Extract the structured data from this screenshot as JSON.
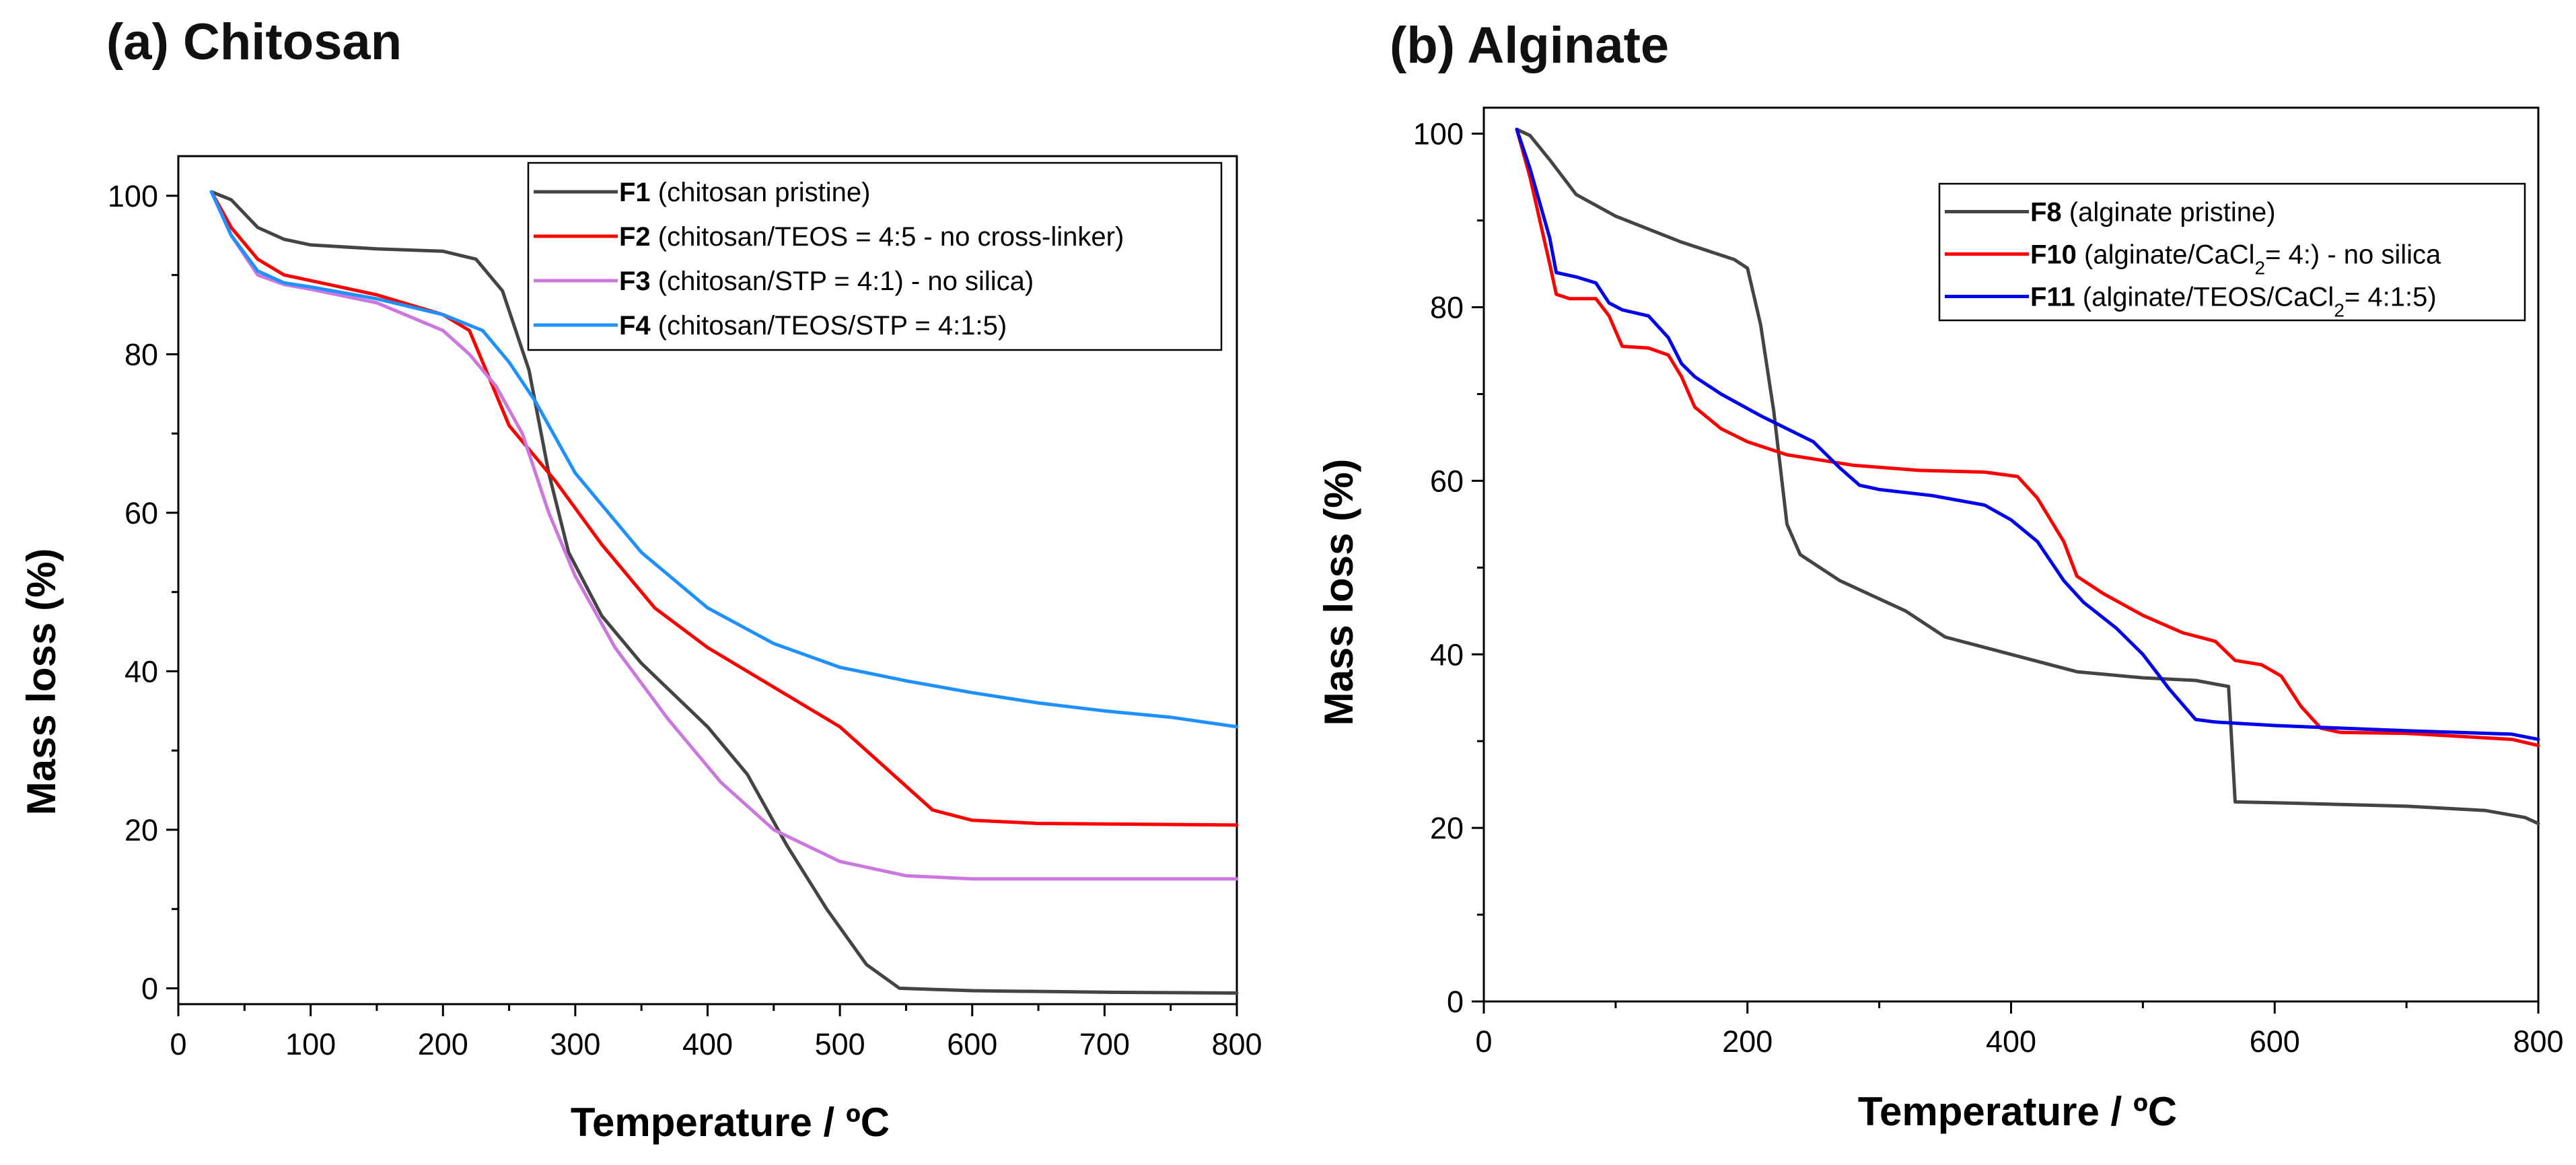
{
  "panels": [
    {
      "key": "a",
      "title": "(a) Chitosan",
      "chart_data": {
        "type": "line",
        "title": "(a) Chitosan",
        "xlabel": "Temperature  / ºC",
        "ylabel": "Mass loss (%)",
        "xlim": [
          0,
          800
        ],
        "ylim": [
          -2,
          105
        ],
        "xticks": [
          0,
          100,
          200,
          300,
          400,
          500,
          600,
          700,
          800
        ],
        "yticks": [
          0,
          20,
          40,
          60,
          80,
          100
        ],
        "legend_position": "top-right",
        "series": [
          {
            "name": "F1",
            "desc": " (chitosan pristine)",
            "color": "#444444",
            "points": [
              [
                25,
                100.5
              ],
              [
                40,
                99.5
              ],
              [
                60,
                96
              ],
              [
                80,
                94.5
              ],
              [
                100,
                93.8
              ],
              [
                150,
                93.3
              ],
              [
                200,
                93
              ],
              [
                225,
                92
              ],
              [
                245,
                88
              ],
              [
                265,
                78
              ],
              [
                280,
                65
              ],
              [
                295,
                55
              ],
              [
                320,
                47
              ],
              [
                350,
                41
              ],
              [
                400,
                33
              ],
              [
                430,
                27
              ],
              [
                460,
                18
              ],
              [
                490,
                10
              ],
              [
                520,
                3
              ],
              [
                545,
                0
              ],
              [
                600,
                -0.3
              ],
              [
                700,
                -0.5
              ],
              [
                800,
                -0.6
              ]
            ]
          },
          {
            "name": "F2",
            "desc": " (chitosan/TEOS = 4:5 - no cross-linker)",
            "color": "#ff0000",
            "points": [
              [
                25,
                100.5
              ],
              [
                40,
                96
              ],
              [
                60,
                92
              ],
              [
                80,
                90
              ],
              [
                100,
                89.3
              ],
              [
                150,
                87.5
              ],
              [
                200,
                85
              ],
              [
                220,
                83
              ],
              [
                235,
                77
              ],
              [
                250,
                71
              ],
              [
                265,
                68
              ],
              [
                285,
                64
              ],
              [
                320,
                56
              ],
              [
                360,
                48
              ],
              [
                400,
                43
              ],
              [
                450,
                38
              ],
              [
                500,
                33
              ],
              [
                540,
                27
              ],
              [
                570,
                22.5
              ],
              [
                600,
                21.2
              ],
              [
                650,
                20.8
              ],
              [
                800,
                20.6
              ]
            ]
          },
          {
            "name": "F3",
            "desc": " (chitosan/STP = 4:1) - no silica)",
            "color": "#cc77dd",
            "points": [
              [
                25,
                100.5
              ],
              [
                40,
                95
              ],
              [
                60,
                90
              ],
              [
                80,
                88.8
              ],
              [
                100,
                88.2
              ],
              [
                150,
                86.5
              ],
              [
                200,
                83
              ],
              [
                220,
                80
              ],
              [
                240,
                76
              ],
              [
                260,
                70
              ],
              [
                280,
                60
              ],
              [
                300,
                52
              ],
              [
                330,
                43
              ],
              [
                370,
                34
              ],
              [
                410,
                26
              ],
              [
                450,
                20
              ],
              [
                500,
                16
              ],
              [
                550,
                14.2
              ],
              [
                600,
                13.8
              ],
              [
                800,
                13.8
              ]
            ]
          },
          {
            "name": "F4",
            "desc": " (chitosan/TEOS/STP = 4:1:5)",
            "color": "#1e90ff",
            "points": [
              [
                25,
                100.5
              ],
              [
                40,
                95
              ],
              [
                60,
                90.5
              ],
              [
                80,
                89
              ],
              [
                100,
                88.5
              ],
              [
                150,
                87
              ],
              [
                200,
                85
              ],
              [
                230,
                83
              ],
              [
                250,
                79
              ],
              [
                270,
                74
              ],
              [
                300,
                65
              ],
              [
                350,
                55
              ],
              [
                400,
                48
              ],
              [
                450,
                43.5
              ],
              [
                500,
                40.5
              ],
              [
                550,
                38.8
              ],
              [
                600,
                37.3
              ],
              [
                650,
                36
              ],
              [
                700,
                35
              ],
              [
                750,
                34.2
              ],
              [
                800,
                33
              ]
            ]
          }
        ]
      }
    },
    {
      "key": "b",
      "title": "(b) Alginate",
      "chart_data": {
        "type": "line",
        "title": "(b) Alginate",
        "xlabel": "Temperature / ºC",
        "ylabel": "Mass loss (%)",
        "xlim": [
          0,
          800
        ],
        "ylim": [
          0,
          103
        ],
        "xticks": [
          0,
          200,
          400,
          600,
          800
        ],
        "yticks": [
          0,
          20,
          40,
          60,
          80,
          100
        ],
        "legend_position": "top-right",
        "series": [
          {
            "name": "F8",
            "desc": "  (alginate pristine)",
            "color": "#444444",
            "points": [
              [
                25,
                100.5
              ],
              [
                35,
                99.8
              ],
              [
                50,
                97
              ],
              [
                70,
                93
              ],
              [
                100,
                90.5
              ],
              [
                150,
                87.5
              ],
              [
                190,
                85.5
              ],
              [
                200,
                84.5
              ],
              [
                210,
                78
              ],
              [
                220,
                68
              ],
              [
                230,
                55
              ],
              [
                240,
                51.5
              ],
              [
                270,
                48.5
              ],
              [
                320,
                45
              ],
              [
                350,
                42
              ],
              [
                400,
                40
              ],
              [
                450,
                38
              ],
              [
                500,
                37.3
              ],
              [
                540,
                37
              ],
              [
                565,
                36.3
              ],
              [
                570,
                23
              ],
              [
                600,
                22.9
              ],
              [
                700,
                22.5
              ],
              [
                760,
                22
              ],
              [
                790,
                21.2
              ],
              [
                800,
                20.5
              ]
            ]
          },
          {
            "name": "F10",
            "desc": " (alginate/CaCl",
            "sub": "2",
            "tail": "= 4:) - no silica",
            "color": "#ff0000",
            "points": [
              [
                25,
                100.5
              ],
              [
                35,
                95
              ],
              [
                50,
                85
              ],
              [
                55,
                81.5
              ],
              [
                65,
                81
              ],
              [
                85,
                81
              ],
              [
                95,
                79
              ],
              [
                105,
                75.5
              ],
              [
                125,
                75.3
              ],
              [
                140,
                74.5
              ],
              [
                150,
                72
              ],
              [
                160,
                68.5
              ],
              [
                180,
                66
              ],
              [
                200,
                64.5
              ],
              [
                230,
                63
              ],
              [
                280,
                61.8
              ],
              [
                330,
                61.2
              ],
              [
                380,
                61
              ],
              [
                405,
                60.5
              ],
              [
                420,
                58
              ],
              [
                440,
                53
              ],
              [
                450,
                49
              ],
              [
                470,
                47
              ],
              [
                500,
                44.5
              ],
              [
                530,
                42.5
              ],
              [
                555,
                41.5
              ],
              [
                570,
                39.3
              ],
              [
                590,
                38.8
              ],
              [
                605,
                37.5
              ],
              [
                620,
                34
              ],
              [
                635,
                31.5
              ],
              [
                650,
                31
              ],
              [
                700,
                30.9
              ],
              [
                780,
                30.2
              ],
              [
                800,
                29.5
              ]
            ]
          },
          {
            "name": "F11",
            "desc": " (alginate/TEOS/CaCl",
            "sub": "2",
            "tail": "= 4:1:5)",
            "color": "#0000ee",
            "points": [
              [
                25,
                100.5
              ],
              [
                35,
                96
              ],
              [
                50,
                88
              ],
              [
                55,
                84
              ],
              [
                70,
                83.5
              ],
              [
                85,
                82.8
              ],
              [
                95,
                80.5
              ],
              [
                105,
                79.7
              ],
              [
                125,
                79
              ],
              [
                140,
                76.5
              ],
              [
                150,
                73.5
              ],
              [
                160,
                72
              ],
              [
                180,
                70
              ],
              [
                210,
                67.5
              ],
              [
                250,
                64.5
              ],
              [
                270,
                61.5
              ],
              [
                285,
                59.5
              ],
              [
                300,
                59
              ],
              [
                340,
                58.3
              ],
              [
                380,
                57.2
              ],
              [
                400,
                55.5
              ],
              [
                420,
                53
              ],
              [
                440,
                48.5
              ],
              [
                455,
                46
              ],
              [
                480,
                43
              ],
              [
                500,
                40
              ],
              [
                520,
                36
              ],
              [
                540,
                32.5
              ],
              [
                555,
                32.2
              ],
              [
                600,
                31.8
              ],
              [
                650,
                31.5
              ],
              [
                700,
                31.2
              ],
              [
                780,
                30.8
              ],
              [
                800,
                30.2
              ]
            ]
          }
        ]
      }
    }
  ]
}
